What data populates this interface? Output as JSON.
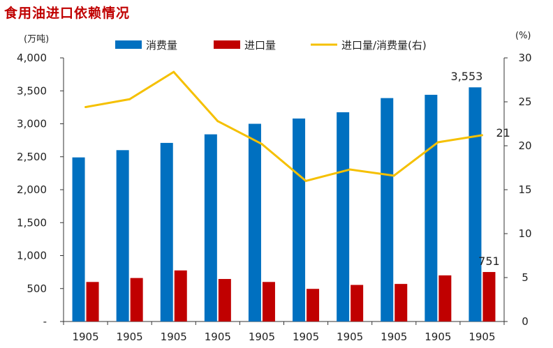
{
  "chart_data": {
    "type": "bar",
    "title": "食用油进口依赖情况",
    "left_unit": "(万吨)",
    "right_unit": "(%)",
    "categories": [
      "1905",
      "1905",
      "1905",
      "1905",
      "1905",
      "1905",
      "1905",
      "1905",
      "1905",
      "1905"
    ],
    "series": [
      {
        "name": "消费量",
        "kind": "bar",
        "axis": "left",
        "color": "#0070c0",
        "values": [
          2490,
          2600,
          2710,
          2840,
          3000,
          3080,
          3175,
          3390,
          3440,
          3553
        ]
      },
      {
        "name": "进口量",
        "kind": "bar",
        "axis": "left",
        "color": "#c00000",
        "values": [
          600,
          660,
          775,
          645,
          600,
          495,
          555,
          570,
          700,
          751
        ]
      },
      {
        "name": "进口量/消费量(右)",
        "kind": "line",
        "axis": "right",
        "color": "#f5c000",
        "values": [
          24.4,
          25.3,
          28.4,
          22.8,
          20.2,
          16.0,
          17.3,
          16.6,
          20.4,
          21.2
        ]
      }
    ],
    "left_axis": {
      "ylim": [
        0,
        4000
      ],
      "ticks": [
        0,
        500,
        1000,
        1500,
        2000,
        2500,
        3000,
        3500,
        4000
      ],
      "tick_labels": [
        "-",
        "500",
        "1,000",
        "1,500",
        "2,000",
        "2,500",
        "3,000",
        "3,500",
        "4,000"
      ]
    },
    "right_axis": {
      "ylim": [
        0,
        30
      ],
      "ticks": [
        0,
        5,
        10,
        15,
        20,
        25,
        30
      ],
      "tick_labels": [
        "0",
        "5",
        "10",
        "15",
        "20",
        "25",
        "30"
      ]
    },
    "data_labels": [
      {
        "series": 0,
        "index": 9,
        "text": "3,553"
      },
      {
        "series": 1,
        "index": 9,
        "text": "751"
      },
      {
        "series": 2,
        "index": 9,
        "text": "21"
      }
    ],
    "legend_position": "top"
  }
}
